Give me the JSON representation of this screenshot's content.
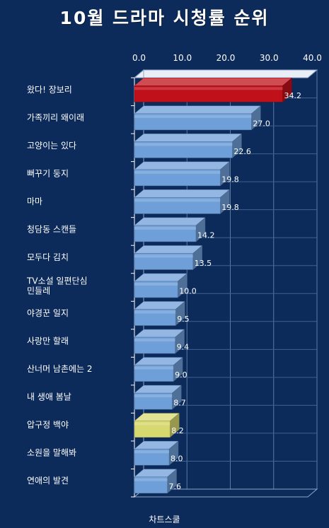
{
  "title": "10월 드라마 시청률 순위",
  "source": "차트스쿨",
  "colors": {
    "background": "#0c2b5a",
    "bar_default": "#6f9fd8",
    "bar_highlight_top": "#c0101a",
    "bar_highlight_low": "#d8d870"
  },
  "chart_data": {
    "type": "bar",
    "orientation": "horizontal",
    "categories": [
      "왔다! 장보리",
      "가족끼리 왜이래",
      "고양이는 있다",
      "뻐꾸기 둥지",
      "마마",
      "청담동 스캔들",
      "모두다 김치",
      "TV소설 일편단심 민들레",
      "야경꾼 일지",
      "사랑만 할래",
      "산너머 남촌에는 2",
      "내 생애 봄날",
      "압구정 백야",
      "소원을 말해봐",
      "연애의 발견"
    ],
    "values": [
      34.2,
      27.0,
      22.6,
      19.8,
      19.8,
      14.2,
      13.5,
      10.0,
      9.5,
      9.4,
      9.0,
      8.7,
      8.2,
      8.0,
      7.6
    ],
    "value_labels": [
      "34.2",
      "27.0",
      "22.6",
      "19.8",
      "19.8",
      "14.2",
      "13.5",
      "10.0",
      "9.5",
      "9.4",
      "9.0",
      "8.7",
      "8.2",
      "8.0",
      "7.6"
    ],
    "highlight": {
      "0": "bar_highlight_top",
      "12": "bar_highlight_low"
    },
    "xlim": [
      0,
      40
    ],
    "xticks": [
      "0.0",
      "10.0",
      "20.0",
      "30.0",
      "40.0"
    ],
    "axis_position": "top",
    "grid": true,
    "style": "3d"
  }
}
